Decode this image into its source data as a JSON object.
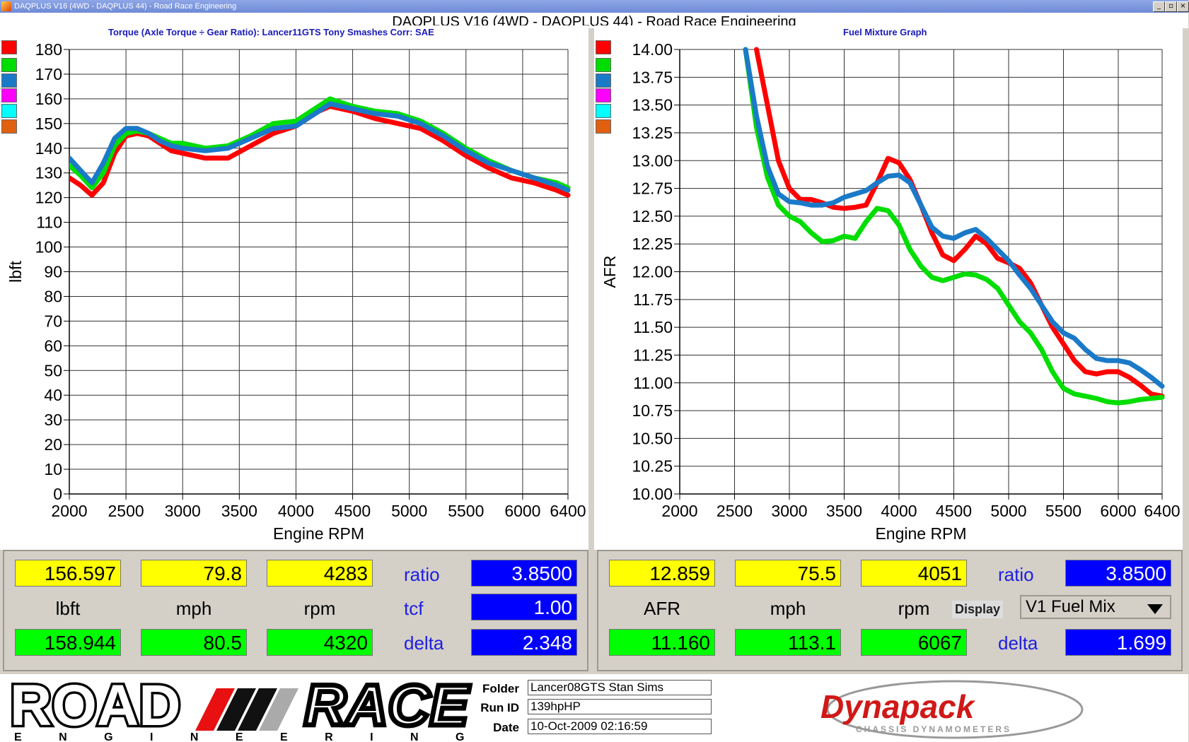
{
  "window": {
    "title": "DAQPLUS V16 (4WD - DAQPLUS 44) - Road Race Engineering",
    "main_title": "DAQPLUS V16 (4WD - DAQPLUS 44) - Road Race Engineering",
    "buttons": {
      "minimize": "_",
      "restore": "▫",
      "close": "×"
    }
  },
  "colors": {
    "series": [
      "#ff0000",
      "#00dd00",
      "#1a7ac8",
      "#ff00ff",
      "#00ffff",
      "#e06010"
    ],
    "title_blue": "#1a1ab8"
  },
  "left_panel": {
    "title": "Torque (Axle Torque ÷ Gear Ratio): Lancer11GTS Tony Smashes      Corr: SAE",
    "readout": {
      "row1": [
        "156.597",
        "79.8",
        "4283"
      ],
      "labels": [
        "lbft",
        "mph",
        "rpm"
      ],
      "row2": [
        "158.944",
        "80.5",
        "4320"
      ],
      "right_labels": [
        "ratio",
        "tcf",
        "delta"
      ],
      "right_values": [
        "3.8500",
        "1.00",
        "2.348"
      ]
    }
  },
  "right_panel": {
    "title": "Fuel Mixture Graph",
    "readout": {
      "row1": [
        "12.859",
        "75.5",
        "4051"
      ],
      "labels": [
        "AFR",
        "mph",
        "rpm"
      ],
      "row2": [
        "11.160",
        "113.1",
        "6067"
      ],
      "ratio_label": "ratio",
      "ratio_value": "3.8500",
      "display_label": "Display",
      "display_select": "V1 Fuel Mix",
      "delta_label": "delta",
      "delta_value": "1.699"
    }
  },
  "chart_data": [
    {
      "type": "line",
      "title": "Torque (Axle Torque ÷ Gear Ratio): Lancer11GTS Tony Smashes      Corr: SAE",
      "xlabel": "Engine RPM",
      "ylabel": "lbft",
      "xlim": [
        2000,
        6400
      ],
      "ylim": [
        0,
        180
      ],
      "xticks": [
        2000,
        2500,
        3000,
        3500,
        4000,
        4500,
        5000,
        5500,
        6000,
        6400
      ],
      "yticks": [
        0,
        10,
        20,
        30,
        40,
        50,
        60,
        70,
        80,
        90,
        100,
        110,
        120,
        130,
        140,
        150,
        160,
        170,
        180
      ],
      "grid": true,
      "series": [
        {
          "color": "#ff0000",
          "x": [
            2000,
            2100,
            2200,
            2300,
            2400,
            2500,
            2600,
            2700,
            2800,
            2900,
            3000,
            3200,
            3400,
            3600,
            3800,
            4000,
            4200,
            4300,
            4500,
            4700,
            4900,
            5100,
            5300,
            5500,
            5700,
            5900,
            6100,
            6300,
            6400
          ],
          "y": [
            128,
            125,
            121,
            126,
            138,
            145,
            146,
            145,
            142,
            139,
            138,
            136,
            136,
            141,
            146,
            149,
            155,
            157,
            155,
            152,
            150,
            148,
            143,
            137,
            132,
            128,
            126,
            123,
            121
          ]
        },
        {
          "color": "#00dd00",
          "x": [
            2000,
            2100,
            2200,
            2300,
            2400,
            2500,
            2600,
            2700,
            2800,
            2900,
            3000,
            3200,
            3400,
            3600,
            3800,
            4000,
            4200,
            4300,
            4500,
            4700,
            4900,
            5100,
            5300,
            5500,
            5700,
            5900,
            6100,
            6300,
            6400
          ],
          "y": [
            133,
            129,
            124,
            130,
            141,
            146,
            147,
            146,
            144,
            142,
            142,
            140,
            141,
            145,
            150,
            151,
            157,
            160,
            157,
            155,
            154,
            151,
            146,
            140,
            135,
            131,
            128,
            126,
            124
          ]
        },
        {
          "color": "#1a7ac8",
          "x": [
            2000,
            2100,
            2200,
            2300,
            2400,
            2500,
            2600,
            2700,
            2800,
            2900,
            3000,
            3200,
            3400,
            3600,
            3800,
            4000,
            4200,
            4300,
            4500,
            4700,
            4900,
            5100,
            5300,
            5500,
            5700,
            5900,
            6100,
            6300,
            6400
          ],
          "y": [
            136,
            131,
            126,
            134,
            144,
            148,
            148,
            146,
            143,
            141,
            140,
            139,
            140,
            144,
            148,
            149,
            155,
            158,
            156,
            154,
            153,
            150,
            145,
            139,
            134,
            131,
            128,
            125,
            123
          ]
        }
      ]
    },
    {
      "type": "line",
      "title": "Fuel Mixture Graph",
      "xlabel": "Engine RPM",
      "ylabel": "AFR",
      "xlim": [
        2000,
        6400
      ],
      "ylim": [
        10.0,
        14.0
      ],
      "xticks": [
        2000,
        2500,
        3000,
        3500,
        4000,
        4500,
        5000,
        5500,
        6000,
        6400
      ],
      "yticks": [
        "10.00",
        "10.25",
        "10.50",
        "10.75",
        "11.00",
        "11.25",
        "11.50",
        "11.75",
        "12.00",
        "12.25",
        "12.50",
        "12.75",
        "13.00",
        "13.25",
        "13.50",
        "13.75",
        "14.00"
      ],
      "grid": true,
      "series": [
        {
          "color": "#ff0000",
          "x": [
            2700,
            2800,
            2900,
            3000,
            3100,
            3200,
            3300,
            3400,
            3500,
            3600,
            3700,
            3800,
            3900,
            4000,
            4100,
            4200,
            4300,
            4400,
            4500,
            4600,
            4700,
            4800,
            4900,
            5000,
            5100,
            5200,
            5300,
            5400,
            5500,
            5600,
            5700,
            5800,
            5900,
            6000,
            6100,
            6200,
            6300,
            6400
          ],
          "y": [
            14.0,
            13.5,
            13.0,
            12.75,
            12.65,
            12.65,
            12.62,
            12.58,
            12.57,
            12.58,
            12.6,
            12.8,
            13.02,
            12.98,
            12.83,
            12.6,
            12.35,
            12.15,
            12.1,
            12.2,
            12.32,
            12.25,
            12.12,
            12.08,
            12.03,
            11.9,
            11.7,
            11.5,
            11.35,
            11.2,
            11.1,
            11.08,
            11.1,
            11.1,
            11.05,
            10.98,
            10.9,
            10.88
          ]
        },
        {
          "color": "#00dd00",
          "x": [
            2600,
            2700,
            2800,
            2900,
            3000,
            3100,
            3200,
            3300,
            3400,
            3500,
            3600,
            3700,
            3800,
            3900,
            4000,
            4100,
            4200,
            4300,
            4400,
            4500,
            4600,
            4700,
            4800,
            4900,
            5000,
            5100,
            5200,
            5300,
            5400,
            5500,
            5600,
            5700,
            5800,
            5900,
            6000,
            6100,
            6200,
            6300,
            6400
          ],
          "y": [
            14.0,
            13.3,
            12.85,
            12.6,
            12.5,
            12.45,
            12.35,
            12.27,
            12.28,
            12.32,
            12.3,
            12.45,
            12.57,
            12.55,
            12.42,
            12.2,
            12.05,
            11.95,
            11.92,
            11.95,
            11.98,
            11.97,
            11.93,
            11.85,
            11.7,
            11.55,
            11.45,
            11.3,
            11.1,
            10.95,
            10.9,
            10.88,
            10.86,
            10.83,
            10.82,
            10.83,
            10.85,
            10.86,
            10.87
          ]
        },
        {
          "color": "#1a7ac8",
          "x": [
            2600,
            2700,
            2800,
            2900,
            3000,
            3100,
            3200,
            3300,
            3400,
            3500,
            3600,
            3700,
            3800,
            3900,
            4000,
            4100,
            4200,
            4300,
            4400,
            4500,
            4600,
            4700,
            4800,
            4900,
            5000,
            5100,
            5200,
            5300,
            5400,
            5500,
            5600,
            5700,
            5800,
            5900,
            6000,
            6100,
            6200,
            6300,
            6400
          ],
          "y": [
            14.0,
            13.4,
            12.95,
            12.7,
            12.63,
            12.62,
            12.6,
            12.6,
            12.62,
            12.67,
            12.7,
            12.73,
            12.8,
            12.86,
            12.87,
            12.8,
            12.6,
            12.4,
            12.32,
            12.3,
            12.35,
            12.38,
            12.3,
            12.2,
            12.1,
            11.97,
            11.85,
            11.7,
            11.55,
            11.45,
            11.4,
            11.3,
            11.22,
            11.2,
            11.2,
            11.18,
            11.12,
            11.05,
            10.97
          ]
        }
      ]
    }
  ],
  "footer": {
    "logo_left_top": "ROAD",
    "logo_left_top2": "RACE",
    "logo_left_bottom": "E N G I N E E R I N G",
    "folder_label": "Folder",
    "folder_value": "Lancer08GTS Stan Sims",
    "runid_label": "Run ID",
    "runid_value": "139hpHP",
    "date_label": "Date",
    "date_value": "10-Oct-2009  02:16:59",
    "logo_right_main": "Dynapack",
    "logo_right_sub": "CHASSIS DYNAMOMETERS"
  }
}
